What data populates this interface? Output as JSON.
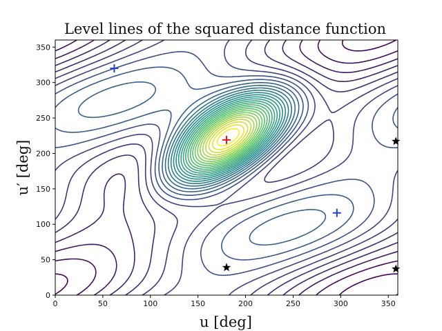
{
  "chart_data": {
    "type": "contour",
    "title": "Level lines of the squared distance function",
    "xlabel": "u [deg]",
    "ylabel": "u′ [deg]",
    "xlim": [
      0,
      360
    ],
    "ylim": [
      0,
      360
    ],
    "xticks": [
      0,
      50,
      100,
      150,
      200,
      250,
      300,
      350
    ],
    "yticks": [
      0,
      50,
      100,
      150,
      200,
      250,
      300,
      350
    ],
    "colormap": "viridis",
    "grid": false,
    "legend": "none",
    "levels": 30,
    "markers": [
      {
        "kind": "maximum",
        "symbol": "plus",
        "color": "#e31a1c",
        "x": 180,
        "y": 219
      },
      {
        "kind": "minimum",
        "symbol": "plus",
        "color": "#1f3fd1",
        "x": 62,
        "y": 320
      },
      {
        "kind": "minimum",
        "symbol": "plus",
        "color": "#1f3fd1",
        "x": 296,
        "y": 116
      },
      {
        "kind": "saddle",
        "symbol": "star",
        "color": "#000000",
        "x": 180,
        "y": 39
      },
      {
        "kind": "saddle",
        "symbol": "star",
        "color": "#000000",
        "x": 358,
        "y": 37
      },
      {
        "kind": "saddle",
        "symbol": "star",
        "color": "#000000",
        "x": 358,
        "y": 217
      }
    ]
  }
}
